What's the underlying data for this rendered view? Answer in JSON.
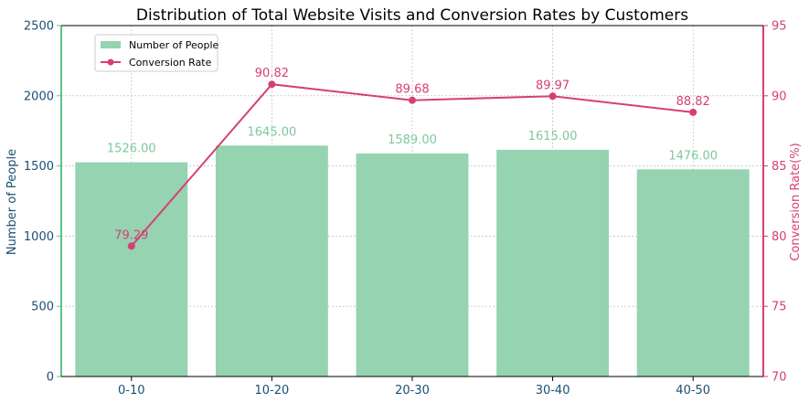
{
  "chart_data": {
    "type": "bar",
    "title": "Distribution of Total Website Visits and Conversion Rates by Customers",
    "categories": [
      "0-10",
      "10-20",
      "20-30",
      "30-40",
      "40-50"
    ],
    "series": [
      {
        "name": "Number of People",
        "type": "bar",
        "axis": "left",
        "values": [
          1526.0,
          1645.0,
          1589.0,
          1615.0,
          1476.0
        ],
        "labels": [
          "1526.00",
          "1645.00",
          "1589.00",
          "1615.00",
          "1476.00"
        ],
        "color": "#95d3b1",
        "label_color": "#7fc7a0"
      },
      {
        "name": "Conversion Rate",
        "type": "line",
        "axis": "right",
        "values": [
          79.29,
          90.82,
          89.68,
          89.97,
          88.82
        ],
        "labels": [
          "79.29",
          "90.82",
          "89.68",
          "89.97",
          "88.82"
        ],
        "color": "#d63f76"
      }
    ],
    "ylabel_left": "Number of People",
    "ylabel_right": "Conversion Rate(%)",
    "ylim_left": [
      0,
      2500
    ],
    "ylim_right": [
      70,
      95
    ],
    "yticks_left": [
      0,
      500,
      1000,
      1500,
      2000,
      2500
    ],
    "yticks_right": [
      70,
      75,
      80,
      85,
      90,
      95
    ],
    "grid": true,
    "legend_position": "top-left",
    "colors": {
      "left_axis": "#5cc48a",
      "right_axis": "#d63f76",
      "left_text": "#1b4f72",
      "title": "#000000"
    }
  }
}
